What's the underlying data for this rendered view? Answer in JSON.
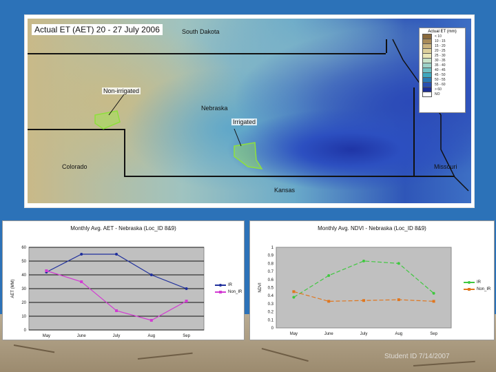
{
  "map": {
    "title": "Actual ET (AET) 20 - 27 July 2006",
    "labels": {
      "south_dakota": "South Dakota",
      "non_irrigated": "Non-irrigated",
      "nebraska": "Nebraska",
      "irrigated": "Irrigated",
      "colorado": "Colorado",
      "missouri": "Missouri",
      "kansas": "Kansas"
    },
    "legend": {
      "title": "Actual ET (mm)",
      "items": [
        {
          "label": "< 10",
          "color": "#8a6a3c"
        },
        {
          "label": "10 - 15",
          "color": "#a98b5a"
        },
        {
          "label": "15 - 20",
          "color": "#c9b27e"
        },
        {
          "label": "20 - 25",
          "color": "#ddd09c"
        },
        {
          "label": "25 - 30",
          "color": "#e9e6b8"
        },
        {
          "label": "30 - 35",
          "color": "#c7e2c8"
        },
        {
          "label": "35 - 40",
          "color": "#9ed1c7"
        },
        {
          "label": "40 - 45",
          "color": "#6fc0c4"
        },
        {
          "label": "45 - 50",
          "color": "#3fa7be"
        },
        {
          "label": "50 - 55",
          "color": "#2a7ab4"
        },
        {
          "label": "55 - 60",
          "color": "#2a4fb0"
        },
        {
          "label": "> 60",
          "color": "#1d2f94"
        },
        {
          "label": "NO",
          "color": "#ffffff"
        }
      ]
    }
  },
  "watermark": "Student ID 7/14/2007",
  "chart_data": [
    {
      "type": "line",
      "title": "Monthly Avg. AET - Nebraska (Loc_ID 8&9)",
      "xlabel": "Month",
      "ylabel": "AET (MM)",
      "categories": [
        "May",
        "June",
        "July",
        "Aug",
        "Sep"
      ],
      "ylim": [
        0,
        60
      ],
      "yticks": [
        0,
        10,
        20,
        30,
        40,
        50,
        60
      ],
      "grid": true,
      "legend": "right",
      "series": [
        {
          "name": "IR",
          "color": "#1f2f9c",
          "dash": "solid",
          "values": [
            42,
            55,
            55,
            40,
            30
          ]
        },
        {
          "name": "Non_IR",
          "color": "#d23ad2",
          "dash": "solid",
          "values": [
            43,
            35,
            14,
            7,
            21
          ]
        }
      ]
    },
    {
      "type": "line",
      "title": "Monthly Avg. NDVI - Nebraska (Loc_ID 8&9)",
      "xlabel": "Month",
      "ylabel": "NDVI",
      "categories": [
        "May",
        "June",
        "July",
        "Aug",
        "Sep"
      ],
      "ylim": [
        0,
        1
      ],
      "yticks": [
        "0",
        "0.1",
        "0.2",
        "0.3",
        "0.4",
        "0.5",
        "0.6",
        "0.7",
        "0.8",
        "0.9",
        "1"
      ],
      "grid": false,
      "legend": "right",
      "series": [
        {
          "name": "IR",
          "color": "#3fc83f",
          "dash": "dashed",
          "values": [
            0.38,
            0.65,
            0.83,
            0.8,
            0.43
          ]
        },
        {
          "name": "Non_IR",
          "color": "#e0761e",
          "dash": "dashed",
          "values": [
            0.45,
            0.33,
            0.34,
            0.35,
            0.33
          ]
        }
      ]
    }
  ]
}
